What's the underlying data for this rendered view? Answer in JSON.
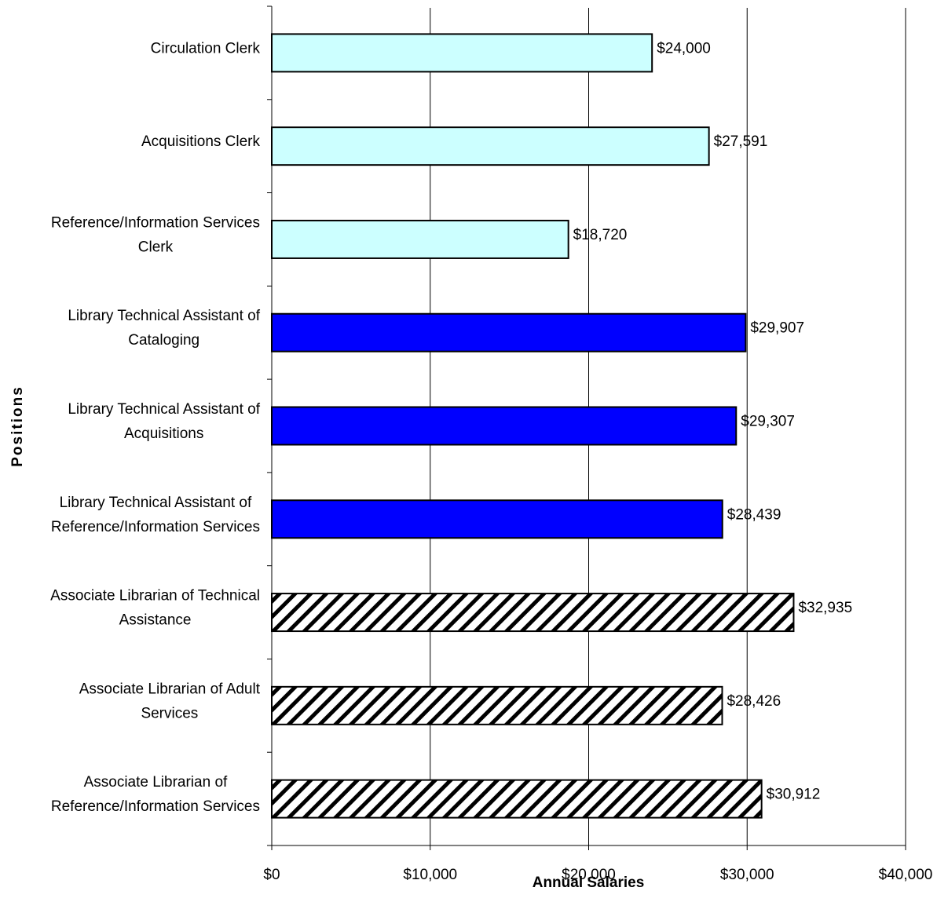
{
  "chart_data": {
    "type": "bar",
    "orientation": "horizontal",
    "xlabel": "Annual Salaries",
    "ylabel": "Positions",
    "xlim": [
      0,
      40000
    ],
    "x_ticks": [
      0,
      10000,
      20000,
      30000,
      40000
    ],
    "x_tick_labels": [
      "$0",
      "$10,000",
      "$20,000",
      "$30,000",
      "$40,000"
    ],
    "grid": "vertical gridlines",
    "legend": "none",
    "categories": [
      [
        "Circulation Clerk"
      ],
      [
        "Acquisitions Clerk"
      ],
      [
        "Reference/Information Services",
        "Clerk"
      ],
      [
        "Library Technical Assistant of",
        "Cataloging"
      ],
      [
        "Library Technical Assistant of",
        "Acquisitions"
      ],
      [
        "Library Technical Assistant of",
        "Reference/Information Services"
      ],
      [
        "Associate Librarian of Technical",
        "Assistance"
      ],
      [
        "Associate Librarian of Adult",
        "Services"
      ],
      [
        "Associate Librarian of",
        "Reference/Information Services"
      ]
    ],
    "values": [
      24000,
      27591,
      18720,
      29907,
      29307,
      28439,
      32935,
      28426,
      30912
    ],
    "value_labels": [
      "$24,000",
      "$27,591",
      "$18,720",
      "$29,907",
      "$29,307",
      "$28,439",
      "$32,935",
      "$28,426",
      "$30,912"
    ],
    "bar_styles": [
      "light-cyan",
      "light-cyan",
      "light-cyan",
      "blue",
      "blue",
      "blue",
      "diagonal-hatch",
      "diagonal-hatch",
      "diagonal-hatch"
    ],
    "colors": {
      "light-cyan": "#ccffff",
      "blue": "#0000ff",
      "hatch_line": "#000000",
      "hatch_bg": "#ffffff",
      "gridline": "#000000"
    }
  }
}
